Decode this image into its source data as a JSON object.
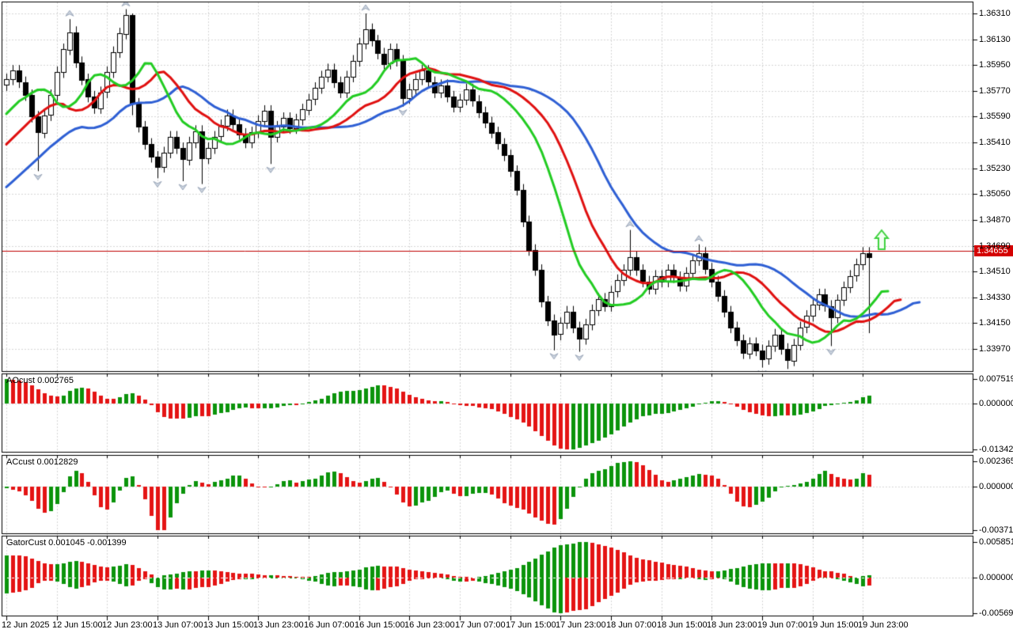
{
  "chart_data": {
    "type": "candlestick-with-indicators",
    "title": "",
    "time_axis_labels": [
      "12 Jun 2025",
      "12 Jun 15:00",
      "12 Jun 23:00",
      "13 Jun 07:00",
      "13 Jun 15:00",
      "13 Jun 23:00",
      "16 Jun 07:00",
      "16 Jun 15:00",
      "16 Jun 23:00",
      "17 Jun 07:00",
      "17 Jun 15:00",
      "17 Jun 23:00",
      "18 Jun 07:00",
      "18 Jun 15:00",
      "18 Jun 23:00",
      "19 Jun 07:00",
      "19 Jun 15:00",
      "19 Jun 23:00"
    ],
    "price_axis_labels": [
      "1.36310",
      "1.36130",
      "1.35950",
      "1.35770",
      "1.35590",
      "1.35410",
      "1.35230",
      "1.35050",
      "1.34870",
      "1.34690",
      "1.34510",
      "1.34330",
      "1.34150",
      "1.33970"
    ],
    "main": {
      "open_first": 1.3581,
      "default_wick": 0.0004,
      "closes": [
        1.3585,
        1.3591,
        1.3583,
        1.3574,
        1.3559,
        1.3548,
        1.356,
        1.3574,
        1.359,
        1.3606,
        1.3618,
        1.3597,
        1.3585,
        1.3573,
        1.3565,
        1.3576,
        1.359,
        1.3604,
        1.3617,
        1.363,
        1.3568,
        1.3552,
        1.354,
        1.3531,
        1.3524,
        1.3534,
        1.3545,
        1.3537,
        1.3529,
        1.3541,
        1.3549,
        1.353,
        1.3537,
        1.3545,
        1.3553,
        1.356,
        1.3554,
        1.3547,
        1.3541,
        1.3548,
        1.3556,
        1.3563,
        1.3545,
        1.3552,
        1.3558,
        1.3551,
        1.3557,
        1.3564,
        1.3571,
        1.3579,
        1.3587,
        1.3592,
        1.3583,
        1.3576,
        1.3587,
        1.3598,
        1.361,
        1.362,
        1.3612,
        1.3603,
        1.3596,
        1.3606,
        1.3598,
        1.3572,
        1.3578,
        1.3585,
        1.3591,
        1.3583,
        1.3576,
        1.3581,
        1.3573,
        1.3566,
        1.3571,
        1.3578,
        1.357,
        1.3562,
        1.3555,
        1.3548,
        1.354,
        1.3532,
        1.3521,
        1.3508,
        1.3486,
        1.3466,
        1.3452,
        1.343,
        1.3417,
        1.3407,
        1.3415,
        1.3423,
        1.3412,
        1.3404,
        1.3414,
        1.3424,
        1.3432,
        1.3427,
        1.3437,
        1.3445,
        1.3452,
        1.3461,
        1.3452,
        1.3444,
        1.3439,
        1.3448,
        1.3444,
        1.3452,
        1.3447,
        1.3441,
        1.345,
        1.3459,
        1.3464,
        1.3453,
        1.3444,
        1.3434,
        1.3423,
        1.3412,
        1.3403,
        1.3394,
        1.3401,
        1.3396,
        1.339,
        1.3399,
        1.3407,
        1.3397,
        1.3389,
        1.34,
        1.3412,
        1.342,
        1.3428,
        1.3435,
        1.3427,
        1.3419,
        1.3431,
        1.344,
        1.3448,
        1.3456,
        1.3464,
        1.3461
      ],
      "high_overrides": {
        "10": 1.3627,
        "19": 1.3634,
        "20": 1.3631,
        "57": 1.3631,
        "99": 1.348,
        "110": 1.347,
        "137": 1.3468
      },
      "low_overrides": {
        "5": 1.3521,
        "20": 1.356,
        "24": 1.3516,
        "28": 1.3514,
        "31": 1.3512,
        "42": 1.3526,
        "63": 1.3566,
        "87": 1.3396,
        "91": 1.3395,
        "120": 1.3384,
        "124": 1.3383,
        "131": 1.3399,
        "137": 1.3408
      },
      "prehistory_medians": [
        1.3418,
        1.3422,
        1.3427,
        1.3431,
        1.3435,
        1.344,
        1.3444,
        1.3448,
        1.3453,
        1.3457,
        1.3461,
        1.3466,
        1.347,
        1.3474,
        1.3479,
        1.3483,
        1.3487,
        1.3492,
        1.3496,
        1.35,
        1.3505,
        1.3509,
        1.3513,
        1.3518,
        1.3522,
        1.3526,
        1.3531,
        1.3535,
        1.3539,
        1.3544,
        1.3548,
        1.3552,
        1.3557,
        1.3561,
        1.3565,
        1.357,
        1.3574,
        1.3578,
        1.3583,
        1.3587
      ],
      "alligator": {
        "jaw": {
          "period": 13,
          "shift": 8,
          "color": "#2e5fd4"
        },
        "teeth": {
          "period": 8,
          "shift": 5,
          "color": "#e01010"
        },
        "lips": {
          "period": 5,
          "shift": 3,
          "color": "#22cc22"
        }
      },
      "price_line": {
        "value": 1.34655,
        "label": "1.34655",
        "color": "#c00000",
        "badge_bg": "#d40000"
      },
      "signal_arrow": {
        "candle_index": 139,
        "price": 1.348,
        "color": "#3fd23f",
        "fill": "#f2fff2"
      },
      "fractal": {
        "fill": "#ccd4e0",
        "stroke": "#9aa6b8"
      }
    },
    "indicators": [
      {
        "name": "AOcust",
        "label": "AOcust 0.002765",
        "type": "awesome",
        "axis_labels": [
          "0.007519",
          "0.000000",
          "-0.013427"
        ]
      },
      {
        "name": "ACcust",
        "label": "ACcust 0.0012829",
        "type": "accelerator",
        "axis_labels": [
          "0.0023653",
          "0.0000000",
          "-0.0037190"
        ]
      },
      {
        "name": "GatorCust",
        "label": "GatorCust 0.001045 -0.001399",
        "type": "gator",
        "axis_labels": [
          "0.005851",
          "0.000000",
          "-0.005697"
        ]
      }
    ],
    "colors": {
      "background": "#ffffff",
      "grid": "#d6d6d6",
      "panel_border": "#000000",
      "bull_body": "#ffffff",
      "bear_body": "#000000",
      "candle_outline": "#000000",
      "indicator_up": "#0b940b",
      "indicator_down": "#e41414"
    },
    "layout_hints": {
      "grid": "dashed",
      "legend_position": "none",
      "panels": [
        "price",
        "AOcust",
        "ACcust",
        "GatorCust"
      ]
    }
  }
}
